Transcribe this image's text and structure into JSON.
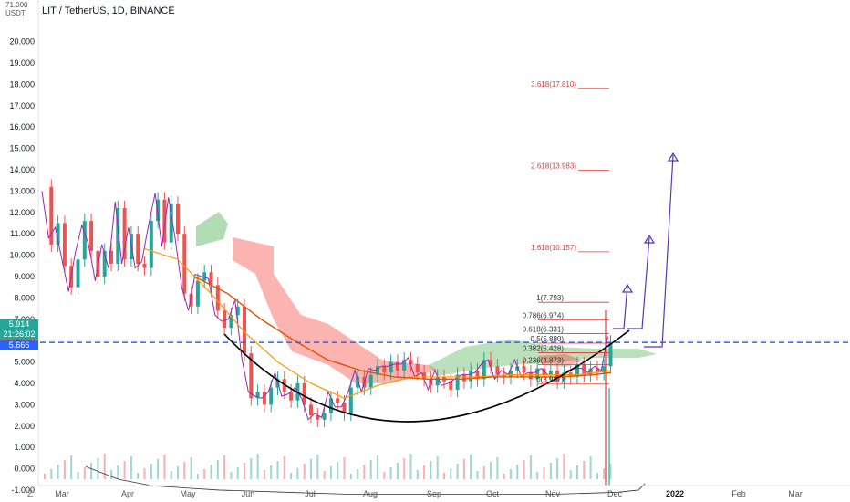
{
  "header": {
    "title": "LIT / TetherUS, 1D, BINANCE",
    "unit_line1": "71.000",
    "unit_line2": "USDT"
  },
  "badges": {
    "current_price": "5.914",
    "countdown": "21:26:02",
    "ma_value": "5.666"
  },
  "colors": {
    "up": "#26a69a",
    "down": "#ef5350",
    "line": "#9c27b0",
    "ma_fast": "#ff9800",
    "ma_slow": "#e65100",
    "cloud_green": "#66bb6a",
    "cloud_red": "#f44336",
    "arc": "#000000",
    "arrow": "#5e35b1",
    "price_line": "#2962ff",
    "fib": "#e53935"
  },
  "chart_data": {
    "type": "line",
    "title": "LIT / TetherUS, 1D, BINANCE",
    "ylim": [
      -1.6,
      21.3
    ],
    "y_ticks": [
      "20.000",
      "19.000",
      "18.000",
      "17.000",
      "16.000",
      "15.000",
      "14.000",
      "13.000",
      "12.000",
      "11.000",
      "10.000",
      "9.000",
      "8.000",
      "7.000",
      "6.000",
      "5.000",
      "4.000",
      "3.000",
      "2.000",
      "1.000",
      "0.000",
      "-1.000"
    ],
    "x_ticks": [
      "Mar",
      "Apr",
      "May",
      "Jun",
      "Jul",
      "Aug",
      "Sep",
      "Oct",
      "Nov",
      "Dec",
      "2022",
      "Feb",
      "Mar"
    ],
    "x_tick_index": [
      0,
      1,
      2,
      3,
      4,
      5,
      6,
      7,
      8,
      9,
      10,
      11,
      12
    ],
    "close_series": [
      [
        0,
        13.2
      ],
      [
        2,
        10.5
      ],
      [
        4,
        11.5
      ],
      [
        6,
        9.5
      ],
      [
        8,
        8.5
      ],
      [
        10,
        9.8
      ],
      [
        12,
        11.6
      ],
      [
        14,
        10.2
      ],
      [
        16,
        9.0
      ],
      [
        18,
        10.2
      ],
      [
        20,
        9.6
      ],
      [
        22,
        12.2
      ],
      [
        24,
        9.8
      ],
      [
        26,
        11.0
      ],
      [
        28,
        9.6
      ],
      [
        30,
        9.4
      ],
      [
        32,
        11.6
      ],
      [
        34,
        12.6
      ],
      [
        36,
        10.6
      ],
      [
        38,
        12.4
      ],
      [
        40,
        11.0
      ],
      [
        42,
        8.2
      ],
      [
        44,
        7.6
      ],
      [
        46,
        8.8
      ],
      [
        48,
        9.2
      ],
      [
        50,
        8.6
      ],
      [
        52,
        7.4
      ],
      [
        54,
        6.6
      ],
      [
        56,
        7.2
      ],
      [
        58,
        7.6
      ],
      [
        60,
        5.4
      ],
      [
        62,
        3.3
      ],
      [
        64,
        3.6
      ],
      [
        66,
        3.0
      ],
      [
        68,
        3.8
      ],
      [
        70,
        4.2
      ],
      [
        72,
        3.6
      ],
      [
        74,
        3.2
      ],
      [
        76,
        4.0
      ],
      [
        78,
        3.0
      ],
      [
        80,
        2.5
      ],
      [
        82,
        2.3
      ],
      [
        84,
        2.6
      ],
      [
        86,
        3.3
      ],
      [
        88,
        3.1
      ],
      [
        90,
        2.6
      ],
      [
        92,
        3.8
      ],
      [
        94,
        4.3
      ],
      [
        96,
        3.8
      ],
      [
        98,
        4.4
      ],
      [
        100,
        4.8
      ],
      [
        102,
        4.5
      ],
      [
        104,
        5.0
      ],
      [
        106,
        4.6
      ],
      [
        108,
        5.1
      ],
      [
        110,
        4.9
      ],
      [
        112,
        4.5
      ],
      [
        114,
        4.2
      ],
      [
        116,
        3.9
      ],
      [
        118,
        4.3
      ],
      [
        120,
        4.1
      ],
      [
        122,
        3.7
      ],
      [
        124,
        4.4
      ],
      [
        126,
        4.1
      ],
      [
        128,
        4.6
      ],
      [
        130,
        4.2
      ],
      [
        132,
        5.1
      ],
      [
        134,
        4.8
      ],
      [
        136,
        4.4
      ],
      [
        138,
        4.3
      ],
      [
        140,
        4.6
      ],
      [
        142,
        4.8
      ],
      [
        144,
        4.5
      ],
      [
        146,
        4.2
      ],
      [
        148,
        4.7
      ],
      [
        150,
        4.4
      ],
      [
        152,
        4.6
      ],
      [
        154,
        4.1
      ],
      [
        156,
        4.5
      ],
      [
        158,
        4.3
      ],
      [
        160,
        4.9
      ],
      [
        162,
        4.4
      ],
      [
        164,
        4.7
      ],
      [
        166,
        4.5
      ],
      [
        168,
        4.8
      ],
      [
        170,
        5.9
      ]
    ],
    "ma_fast_series": [
      [
        30,
        10.3
      ],
      [
        40,
        9.8
      ],
      [
        50,
        8.2
      ],
      [
        60,
        6.4
      ],
      [
        70,
        5.0
      ],
      [
        80,
        4.0
      ],
      [
        90,
        3.3
      ],
      [
        100,
        3.9
      ],
      [
        110,
        4.3
      ],
      [
        120,
        4.3
      ],
      [
        130,
        4.3
      ],
      [
        140,
        4.4
      ],
      [
        150,
        4.4
      ],
      [
        160,
        4.4
      ],
      [
        170,
        4.6
      ]
    ],
    "ma_slow_series": [
      [
        45,
        9.0
      ],
      [
        55,
        8.2
      ],
      [
        65,
        7.0
      ],
      [
        75,
        6.0
      ],
      [
        85,
        5.1
      ],
      [
        95,
        4.6
      ],
      [
        105,
        4.3
      ],
      [
        115,
        4.2
      ],
      [
        125,
        4.2
      ],
      [
        135,
        4.3
      ],
      [
        145,
        4.3
      ],
      [
        155,
        4.3
      ],
      [
        165,
        4.4
      ],
      [
        170,
        4.5
      ]
    ],
    "volume_series": [
      [
        0,
        0.1
      ],
      [
        10,
        -0.5
      ],
      [
        20,
        -0.8
      ],
      [
        30,
        -0.9
      ],
      [
        40,
        -1.0
      ],
      [
        60,
        -1.1
      ],
      [
        80,
        -1.2
      ],
      [
        100,
        -1.2
      ],
      [
        120,
        -1.2
      ],
      [
        140,
        -1.2
      ],
      [
        160,
        -1.1
      ],
      [
        166,
        -1.0
      ],
      [
        168,
        -0.7
      ]
    ],
    "fib_levels": [
      {
        "label": "3.618(17.810)",
        "value": 17.81
      },
      {
        "label": "2.618(13.983)",
        "value": 13.983
      },
      {
        "label": "1.618(10.157)",
        "value": 10.157
      },
      {
        "label": "1(7.793)",
        "value": 7.793
      },
      {
        "label": "0.786(6.974)",
        "value": 6.974
      },
      {
        "label": "0.618(6.331)",
        "value": 6.331
      },
      {
        "label": "0.5(5.880)",
        "value": 5.88
      },
      {
        "label": "0.382(5.428)",
        "value": 5.428
      },
      {
        "label": "0.236(4.873)",
        "value": 4.873
      },
      {
        "label": "0(3.967)",
        "value": 3.967
      }
    ],
    "current_price": 5.914,
    "grid": false
  }
}
